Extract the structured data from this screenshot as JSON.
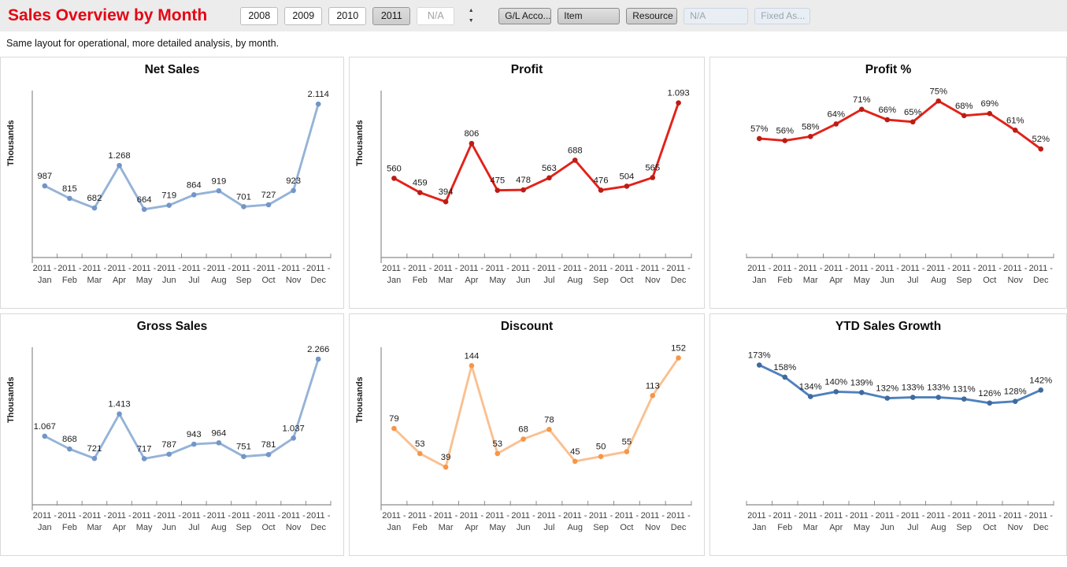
{
  "header": {
    "title": "Sales Overview by Month",
    "year_buttons": [
      {
        "label": "2008",
        "state": "enabled"
      },
      {
        "label": "2009",
        "state": "enabled"
      },
      {
        "label": "2010",
        "state": "enabled"
      },
      {
        "label": "2011",
        "state": "selected"
      },
      {
        "label": "N/A",
        "state": "disabled"
      }
    ],
    "spinner": {
      "up_icon": "▲",
      "down_icon": "▼"
    },
    "filter_buttons": [
      {
        "label": "G/L Acco...",
        "state": "enabled"
      },
      {
        "label": "Item",
        "state": "enabled"
      },
      {
        "label": "Resource",
        "state": "enabled"
      },
      {
        "label": "N/A",
        "state": "disabled"
      },
      {
        "label": "Fixed As...",
        "state": "disabled"
      }
    ]
  },
  "subtitle": "Same layout for operational, more detailed analysis, by month.",
  "colors": {
    "title_red": "#e40613",
    "light_blue_line": "#95b3d7",
    "light_blue_marker": "#7396c8",
    "red_line": "#e32119",
    "red_marker": "#bb1d14",
    "orange_line": "#fac090",
    "orange_marker": "#f79646",
    "steel_blue_line": "#4f81bd",
    "steel_blue_marker": "#406a9e",
    "axis_gray": "#8c8c8c",
    "label_dark": "#1a1a1a"
  },
  "chart_data": [
    {
      "type": "line",
      "title": "Net Sales",
      "ylabel": "Thousands",
      "categories": [
        "2011 - Jan",
        "2011 - Feb",
        "2011 - Mar",
        "2011 - Apr",
        "2011 - May",
        "2011 - Jun",
        "2011 - Jul",
        "2011 - Aug",
        "2011 - Sep",
        "2011 - Oct",
        "2011 - Nov",
        "2011 - Dec"
      ],
      "values": [
        987,
        815,
        682,
        1268,
        664,
        719,
        864,
        919,
        701,
        727,
        923,
        2114
      ],
      "labels": [
        "987",
        "815",
        "682",
        "1.268",
        "664",
        "719",
        "864",
        "919",
        "701",
        "727",
        "923",
        "2.114"
      ],
      "ylim": [
        0,
        2300
      ],
      "line_color": "#95b3d7",
      "marker_color": "#7396c8",
      "grid": false,
      "legend": false
    },
    {
      "type": "line",
      "title": "Profit",
      "ylabel": "Thousands",
      "categories": [
        "2011 - Jan",
        "2011 - Feb",
        "2011 - Mar",
        "2011 - Apr",
        "2011 - May",
        "2011 - Jun",
        "2011 - Jul",
        "2011 - Aug",
        "2011 - Sep",
        "2011 - Oct",
        "2011 - Nov",
        "2011 - Dec"
      ],
      "values": [
        560,
        459,
        394,
        806,
        475,
        478,
        563,
        688,
        476,
        504,
        565,
        1093
      ],
      "labels": [
        "560",
        "459",
        "394",
        "806",
        "475",
        "478",
        "563",
        "688",
        "476",
        "504",
        "565",
        "1.093"
      ],
      "ylim": [
        0,
        1180
      ],
      "line_color": "#e32119",
      "marker_color": "#bb1d14",
      "grid": false,
      "legend": false
    },
    {
      "type": "line",
      "title": "Profit %",
      "ylabel": "",
      "categories": [
        "2011 - Jan",
        "2011 - Feb",
        "2011 - Mar",
        "2011 - Apr",
        "2011 - May",
        "2011 - Jun",
        "2011 - Jul",
        "2011 - Aug",
        "2011 - Sep",
        "2011 - Oct",
        "2011 - Nov",
        "2011 - Dec"
      ],
      "values": [
        0.57,
        0.56,
        0.58,
        0.64,
        0.71,
        0.66,
        0.65,
        0.75,
        0.68,
        0.69,
        0.61,
        0.52
      ],
      "labels": [
        "57%",
        "56%",
        "58%",
        "64%",
        "71%",
        "66%",
        "65%",
        "75%",
        "68%",
        "69%",
        "61%",
        "52%"
      ],
      "ylim": [
        0,
        0.8
      ],
      "line_color": "#e32119",
      "marker_color": "#bb1d14",
      "grid": false,
      "legend": false
    },
    {
      "type": "line",
      "title": "Gross Sales",
      "ylabel": "Thousands",
      "categories": [
        "2011 - Jan",
        "2011 - Feb",
        "2011 - Mar",
        "2011 - Apr",
        "2011 - May",
        "2011 - Jun",
        "2011 - Jul",
        "2011 - Aug",
        "2011 - Sep",
        "2011 - Oct",
        "2011 - Nov",
        "2011 - Dec"
      ],
      "values": [
        1067,
        868,
        721,
        1413,
        717,
        787,
        943,
        964,
        751,
        781,
        1037,
        2266
      ],
      "labels": [
        "1.067",
        "868",
        "721",
        "1.413",
        "717",
        "787",
        "943",
        "964",
        "751",
        "781",
        "1.037",
        "2.266"
      ],
      "ylim": [
        0,
        2450
      ],
      "line_color": "#95b3d7",
      "marker_color": "#7396c8",
      "grid": false,
      "legend": false
    },
    {
      "type": "line",
      "title": "Discount",
      "ylabel": "Thousands",
      "categories": [
        "2011 - Jan",
        "2011 - Feb",
        "2011 - Mar",
        "2011 - Apr",
        "2011 - May",
        "2011 - Jun",
        "2011 - Jul",
        "2011 - Aug",
        "2011 - Sep",
        "2011 - Oct",
        "2011 - Nov",
        "2011 - Dec"
      ],
      "values": [
        79,
        53,
        39,
        144,
        53,
        68,
        78,
        45,
        50,
        55,
        113,
        152
      ],
      "labels": [
        "79",
        "53",
        "39",
        "144",
        "53",
        "68",
        "78",
        "45",
        "50",
        "55",
        "113",
        "152"
      ],
      "ylim": [
        0,
        163
      ],
      "line_color": "#fac090",
      "marker_color": "#f79646",
      "grid": false,
      "legend": false
    },
    {
      "type": "line",
      "title": "YTD Sales Growth",
      "ylabel": "",
      "categories": [
        "2011 - Jan",
        "2011 - Feb",
        "2011 - Mar",
        "2011 - Apr",
        "2011 - May",
        "2011 - Jun",
        "2011 - Jul",
        "2011 - Aug",
        "2011 - Sep",
        "2011 - Oct",
        "2011 - Nov",
        "2011 - Dec"
      ],
      "values": [
        1.73,
        1.58,
        1.34,
        1.4,
        1.39,
        1.32,
        1.33,
        1.33,
        1.31,
        1.26,
        1.28,
        1.42
      ],
      "labels": [
        "173%",
        "158%",
        "134%",
        "140%",
        "139%",
        "132%",
        "133%",
        "133%",
        "131%",
        "126%",
        "128%",
        "142%"
      ],
      "ylim": [
        0,
        1.95
      ],
      "line_color": "#4f81bd",
      "marker_color": "#406a9e",
      "grid": false,
      "legend": false
    }
  ]
}
